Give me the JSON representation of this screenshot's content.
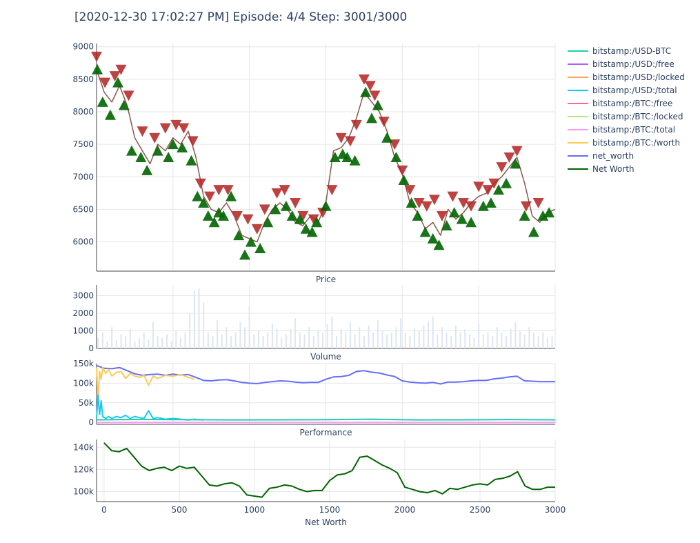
{
  "title": "[2020-12-30 17:02:27 PM] Episode: 4/4 Step: 3001/3000",
  "legend": {
    "items": [
      {
        "label": "bitstamp:/USD-BTC",
        "color": "#19d3a2"
      },
      {
        "label": "bitstamp:/USD:/free",
        "color": "#ab63fa"
      },
      {
        "label": "bitstamp:/USD:/locked",
        "color": "#ffa15a"
      },
      {
        "label": "bitstamp:/USD:/total",
        "color": "#19c9f3"
      },
      {
        "label": "bitstamp:/BTC:/free",
        "color": "#ff6692"
      },
      {
        "label": "bitstamp:/BTC:/locked",
        "color": "#b6e880"
      },
      {
        "label": "bitstamp:/BTC:/total",
        "color": "#ff97ff"
      },
      {
        "label": "bitstamp:/BTC:/worth",
        "color": "#fecb52"
      },
      {
        "label": "net_worth",
        "color": "#636efa"
      },
      {
        "label": "Net Worth",
        "color": "#006400"
      }
    ]
  },
  "chart_data": [
    {
      "type": "scatter",
      "subplot": "price",
      "xlabel": "Price",
      "xlim": [
        0,
        3000
      ],
      "ylim": [
        5550,
        9050
      ],
      "yticks": [
        6000,
        6500,
        7000,
        7500,
        8000,
        8500,
        9000
      ],
      "series": [
        {
          "role": "price-line",
          "color": "#8c564b",
          "x": [
            0,
            50,
            100,
            150,
            200,
            250,
            300,
            350,
            400,
            450,
            500,
            550,
            600,
            650,
            700,
            750,
            800,
            850,
            900,
            950,
            1000,
            1050,
            1100,
            1150,
            1200,
            1250,
            1300,
            1350,
            1400,
            1450,
            1500,
            1550,
            1600,
            1650,
            1700,
            1750,
            1800,
            1850,
            1900,
            1950,
            2000,
            2050,
            2100,
            2150,
            2200,
            2250,
            2300,
            2350,
            2400,
            2450,
            2500,
            2550,
            2600,
            2650,
            2700,
            2750,
            2800,
            2850,
            2900,
            2950,
            3000
          ],
          "y": [
            8650,
            8300,
            8150,
            8400,
            8100,
            7600,
            7400,
            7200,
            7500,
            7400,
            7600,
            7500,
            7700,
            7300,
            6700,
            6500,
            6450,
            6600,
            6400,
            6100,
            6050,
            6000,
            6300,
            6500,
            6600,
            6500,
            6300,
            6250,
            6400,
            6300,
            6600,
            7400,
            7450,
            7600,
            7900,
            8300,
            8150,
            8000,
            7700,
            7300,
            7050,
            6600,
            6450,
            6200,
            6300,
            6100,
            6500,
            6350,
            6450,
            6600,
            6700,
            6750,
            6900,
            7000,
            7150,
            7300,
            6900,
            6400,
            6300,
            6450,
            6500
          ]
        },
        {
          "role": "sell-markers",
          "color": "#b22222",
          "x": [
            0,
            55,
            120,
            160,
            210,
            300,
            380,
            450,
            520,
            570,
            630,
            680,
            740,
            800,
            860,
            920,
            990,
            1050,
            1100,
            1180,
            1230,
            1300,
            1350,
            1420,
            1480,
            1540,
            1600,
            1660,
            1700,
            1750,
            1790,
            1820,
            1880,
            1950,
            2000,
            2050,
            2110,
            2160,
            2210,
            2260,
            2330,
            2400,
            2450,
            2500,
            2560,
            2600,
            2650,
            2700,
            2750,
            2810,
            2890
          ],
          "y": [
            8850,
            8450,
            8550,
            8650,
            8250,
            7700,
            7600,
            7750,
            7800,
            7750,
            7550,
            6900,
            6700,
            6800,
            6800,
            6400,
            6350,
            6200,
            6500,
            6750,
            6800,
            6600,
            6400,
            6350,
            6450,
            6800,
            7600,
            7550,
            7800,
            8500,
            8400,
            8250,
            7850,
            7500,
            7100,
            6800,
            6600,
            6550,
            6650,
            6400,
            6700,
            6600,
            6550,
            6850,
            6800,
            6900,
            7150,
            7300,
            7400,
            6550,
            6600
          ]
        },
        {
          "role": "buy-markers",
          "color": "#006400",
          "x": [
            5,
            40,
            90,
            140,
            180,
            230,
            290,
            330,
            400,
            470,
            500,
            560,
            620,
            660,
            700,
            730,
            770,
            800,
            830,
            880,
            930,
            970,
            1010,
            1070,
            1120,
            1170,
            1240,
            1280,
            1330,
            1370,
            1410,
            1440,
            1500,
            1560,
            1610,
            1640,
            1690,
            1760,
            1800,
            1840,
            1900,
            1960,
            2010,
            2060,
            2100,
            2150,
            2200,
            2240,
            2290,
            2340,
            2390,
            2450,
            2530,
            2580,
            2630,
            2680,
            2740,
            2800,
            2860,
            2920,
            2960
          ],
          "y": [
            8650,
            8150,
            7950,
            8450,
            8100,
            7400,
            7300,
            7100,
            7400,
            7300,
            7500,
            7450,
            7250,
            6700,
            6600,
            6400,
            6300,
            6450,
            6400,
            6700,
            6100,
            5800,
            6000,
            5900,
            6300,
            6500,
            6550,
            6400,
            6350,
            6200,
            6150,
            6300,
            6550,
            7300,
            7350,
            7300,
            7250,
            8300,
            7900,
            8100,
            7600,
            7300,
            6950,
            6600,
            6400,
            6150,
            6050,
            5950,
            6250,
            6450,
            6350,
            6300,
            6550,
            6600,
            6800,
            6900,
            7200,
            6400,
            6150,
            6400,
            6450
          ]
        }
      ]
    },
    {
      "type": "bar",
      "subplot": "volume",
      "xlabel": "Volume",
      "xlim": [
        0,
        3000
      ],
      "ylim": [
        0,
        3600
      ],
      "yticks": [
        0,
        1000,
        2000,
        3000
      ],
      "color": "#dce6f2",
      "x": [
        10,
        40,
        70,
        100,
        130,
        160,
        190,
        220,
        250,
        280,
        310,
        340,
        370,
        400,
        430,
        460,
        490,
        520,
        550,
        580,
        610,
        640,
        670,
        700,
        730,
        760,
        790,
        820,
        850,
        880,
        910,
        940,
        970,
        1000,
        1030,
        1060,
        1090,
        1120,
        1150,
        1180,
        1210,
        1240,
        1270,
        1300,
        1330,
        1360,
        1390,
        1420,
        1450,
        1480,
        1510,
        1540,
        1570,
        1600,
        1630,
        1660,
        1690,
        1720,
        1750,
        1780,
        1810,
        1840,
        1870,
        1900,
        1930,
        1960,
        1990,
        2020,
        2050,
        2080,
        2110,
        2140,
        2170,
        2200,
        2230,
        2260,
        2290,
        2320,
        2350,
        2380,
        2410,
        2440,
        2470,
        2500,
        2530,
        2560,
        2590,
        2620,
        2650,
        2680,
        2710,
        2740,
        2770,
        2800,
        2830,
        2860,
        2890,
        2920,
        2950,
        2980
      ],
      "values": [
        600,
        900,
        400,
        1200,
        500,
        800,
        700,
        1100,
        400,
        600,
        900,
        500,
        1500,
        700,
        600,
        800,
        400,
        1000,
        600,
        900,
        2000,
        3300,
        3400,
        2600,
        900,
        700,
        1600,
        800,
        1200,
        700,
        900,
        1500,
        1200,
        2400,
        800,
        1000,
        700,
        900,
        1400,
        1100,
        600,
        800,
        1100,
        1700,
        900,
        800,
        1200,
        700,
        1000,
        900,
        1400,
        1800,
        700,
        1100,
        900,
        1500,
        800,
        1200,
        700,
        1300,
        900,
        1600,
        1000,
        800,
        900,
        1200,
        1700,
        900,
        700,
        1100,
        1000,
        1300,
        1500,
        1800,
        800,
        1200,
        900,
        700,
        1300,
        900,
        1100,
        800,
        600,
        1400,
        800,
        900,
        700,
        1200,
        900,
        700,
        1100,
        1500,
        1000,
        800,
        1200,
        900,
        700,
        900,
        600,
        700
      ]
    },
    {
      "type": "line",
      "subplot": "performance",
      "xlabel": "Performance",
      "xlim": [
        0,
        3000
      ],
      "ylim": [
        -5000,
        150000
      ],
      "yticks": [
        0,
        50000,
        100000,
        150000
      ],
      "ytick_labels": [
        "0",
        "50k",
        "100k",
        "150k"
      ],
      "series": [
        {
          "name": "net_worth",
          "color": "#636efa",
          "x": [
            0,
            50,
            100,
            150,
            200,
            250,
            300,
            350,
            400,
            450,
            500,
            550,
            600,
            650,
            700,
            750,
            800,
            850,
            900,
            950,
            1000,
            1050,
            1100,
            1150,
            1200,
            1250,
            1300,
            1350,
            1400,
            1450,
            1500,
            1550,
            1600,
            1650,
            1700,
            1750,
            1800,
            1850,
            1900,
            1950,
            2000,
            2050,
            2100,
            2150,
            2200,
            2250,
            2300,
            2350,
            2400,
            2450,
            2500,
            2550,
            2600,
            2650,
            2700,
            2750,
            2800,
            2850,
            2900,
            2950,
            3000
          ],
          "y": [
            145000,
            138000,
            137000,
            140000,
            132000,
            124000,
            120000,
            122000,
            123000,
            120000,
            123000,
            121000,
            122000,
            115000,
            107000,
            106000,
            108000,
            109000,
            106000,
            102000,
            100000,
            99000,
            102000,
            104000,
            106000,
            105000,
            103000,
            101000,
            102000,
            102000,
            110000,
            116000,
            117000,
            120000,
            130000,
            132000,
            128000,
            126000,
            121000,
            117000,
            106000,
            103000,
            101000,
            100000,
            102000,
            98000,
            103000,
            103000,
            104000,
            106000,
            107000,
            107000,
            111000,
            113000,
            116000,
            118000,
            106000,
            105000,
            104000,
            104000,
            104000
          ]
        },
        {
          "name": "bitstamp:/BTC:/worth",
          "color": "#fecb52",
          "x": [
            0,
            10,
            20,
            30,
            40,
            60,
            80,
            100,
            130,
            160,
            190,
            220,
            250,
            280,
            310,
            340,
            370,
            400,
            450,
            500,
            550,
            600,
            640
          ],
          "y": [
            140000,
            60000,
            130000,
            110000,
            140000,
            125000,
            135000,
            118000,
            128000,
            130000,
            112000,
            125000,
            118000,
            115000,
            120000,
            95000,
            118000,
            112000,
            120000,
            118000,
            122000,
            115000,
            110000
          ]
        },
        {
          "name": "bitstamp:/USD:/total",
          "color": "#19c9f3",
          "x": [
            0,
            10,
            20,
            30,
            40,
            60,
            80,
            100,
            130,
            160,
            190,
            220,
            250,
            280,
            310,
            340,
            370,
            400,
            450,
            500,
            550,
            600,
            640,
            700
          ],
          "y": [
            10000,
            70000,
            20000,
            55000,
            15000,
            10000,
            15000,
            10000,
            15000,
            12000,
            18000,
            10000,
            15000,
            12000,
            10000,
            30000,
            10000,
            12000,
            8000,
            10000,
            8000,
            6000,
            8000,
            6000
          ]
        },
        {
          "name": "bitstamp:/USD-BTC",
          "color": "#19d3a2",
          "x": [
            0,
            300,
            600,
            900,
            1200,
            1500,
            1800,
            2100,
            2400,
            2700,
            3000
          ],
          "y": [
            6500,
            7500,
            6800,
            6200,
            6400,
            6800,
            8000,
            6300,
            6500,
            7100,
            6500
          ]
        },
        {
          "name": "bitstamp:/BTC:/total",
          "color": "#ff97ff",
          "x": [
            0,
            3000
          ],
          "y": [
            0,
            0
          ]
        }
      ]
    },
    {
      "type": "line",
      "subplot": "net-worth",
      "xlabel": "Net Worth",
      "xlim": [
        -50,
        3000
      ],
      "xticks": [
        0,
        500,
        1000,
        1500,
        2000,
        2500,
        3000
      ],
      "ylim": [
        91000,
        147000
      ],
      "yticks": [
        100000,
        120000,
        140000
      ],
      "ytick_labels": [
        "100k",
        "120k",
        "140k"
      ],
      "series": [
        {
          "name": "Net Worth",
          "color": "#006400",
          "x": [
            0,
            50,
            100,
            150,
            200,
            250,
            300,
            350,
            400,
            450,
            500,
            550,
            600,
            650,
            700,
            750,
            800,
            850,
            900,
            950,
            1000,
            1050,
            1100,
            1150,
            1200,
            1250,
            1300,
            1350,
            1400,
            1450,
            1500,
            1550,
            1600,
            1650,
            1700,
            1750,
            1800,
            1850,
            1900,
            1950,
            2000,
            2050,
            2100,
            2150,
            2200,
            2250,
            2300,
            2350,
            2400,
            2450,
            2500,
            2550,
            2600,
            2650,
            2700,
            2750,
            2800,
            2850,
            2900,
            2950,
            3000
          ],
          "y": [
            144000,
            137000,
            136000,
            139000,
            131000,
            123000,
            119000,
            121000,
            122000,
            119000,
            123000,
            121000,
            122000,
            114000,
            106000,
            105000,
            107000,
            108000,
            105000,
            97000,
            96000,
            95000,
            103000,
            104000,
            106000,
            105000,
            102000,
            100000,
            101000,
            101000,
            110000,
            115000,
            116000,
            119000,
            131000,
            132000,
            128000,
            124000,
            121000,
            117000,
            104000,
            102000,
            100000,
            99000,
            101000,
            98000,
            103000,
            102000,
            104000,
            106000,
            107000,
            106000,
            111000,
            112000,
            114000,
            118000,
            105000,
            102000,
            102000,
            104000,
            104000
          ]
        }
      ]
    }
  ]
}
